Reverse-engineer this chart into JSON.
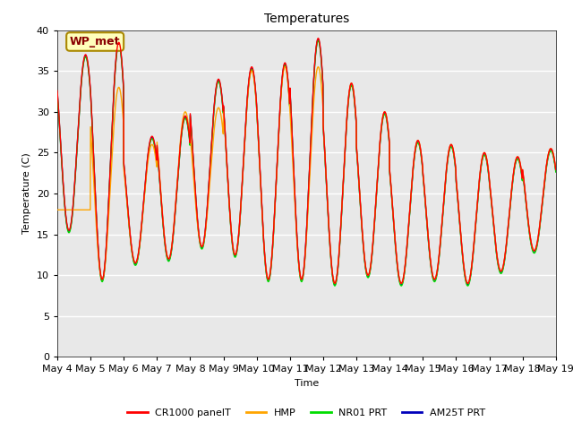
{
  "title": "Temperatures",
  "xlabel": "Time",
  "ylabel": "Temperature (C)",
  "ylim": [
    0,
    40
  ],
  "yticks": [
    0,
    5,
    10,
    15,
    20,
    25,
    30,
    35,
    40
  ],
  "x_labels": [
    "May 4",
    "May 5",
    "May 6",
    "May 7",
    "May 8",
    "May 9",
    "May 10",
    "May 11",
    "May 12",
    "May 13",
    "May 14",
    "May 15",
    "May 16",
    "May 17",
    "May 18",
    "May 19"
  ],
  "series": {
    "CR1000 panelT": {
      "color": "#FF0000",
      "lw": 1.0
    },
    "HMP": {
      "color": "#FFA500",
      "lw": 1.0
    },
    "NR01 PRT": {
      "color": "#00DD00",
      "lw": 1.0
    },
    "AM25T PRT": {
      "color": "#0000BB",
      "lw": 1.0
    }
  },
  "annotation_text": "WP_met",
  "annotation_bbox_fc": "#FFFFBB",
  "annotation_bbox_ec": "#AA8800",
  "background_color": "#E8E8E8",
  "fig_bg": "#FFFFFF",
  "title_fontsize": 10,
  "tick_fontsize": 8,
  "legend_fontsize": 8,
  "axis_label_fontsize": 8,
  "n_days": 15,
  "day_maxes": [
    37.0,
    38.5,
    27.0,
    29.5,
    34.0,
    35.5,
    36.0,
    39.0,
    33.5,
    30.0,
    26.5,
    26.0,
    25.0,
    24.5,
    25.5
  ],
  "day_mins": [
    15.5,
    9.5,
    11.5,
    12.0,
    13.5,
    12.5,
    9.5,
    9.5,
    9.0,
    10.0,
    9.0,
    9.5,
    9.0,
    10.5,
    13.0
  ],
  "hmp_day_maxes": [
    18.0,
    33.0,
    26.0,
    30.0,
    30.5,
    35.0,
    35.5,
    35.5,
    33.5,
    30.0,
    26.5,
    26.0,
    25.0,
    24.5,
    25.5
  ],
  "hmp_day_mins": [
    18.0,
    9.5,
    11.5,
    12.0,
    13.5,
    12.5,
    9.5,
    9.5,
    9.0,
    10.0,
    9.0,
    9.5,
    9.0,
    10.5,
    13.0
  ]
}
